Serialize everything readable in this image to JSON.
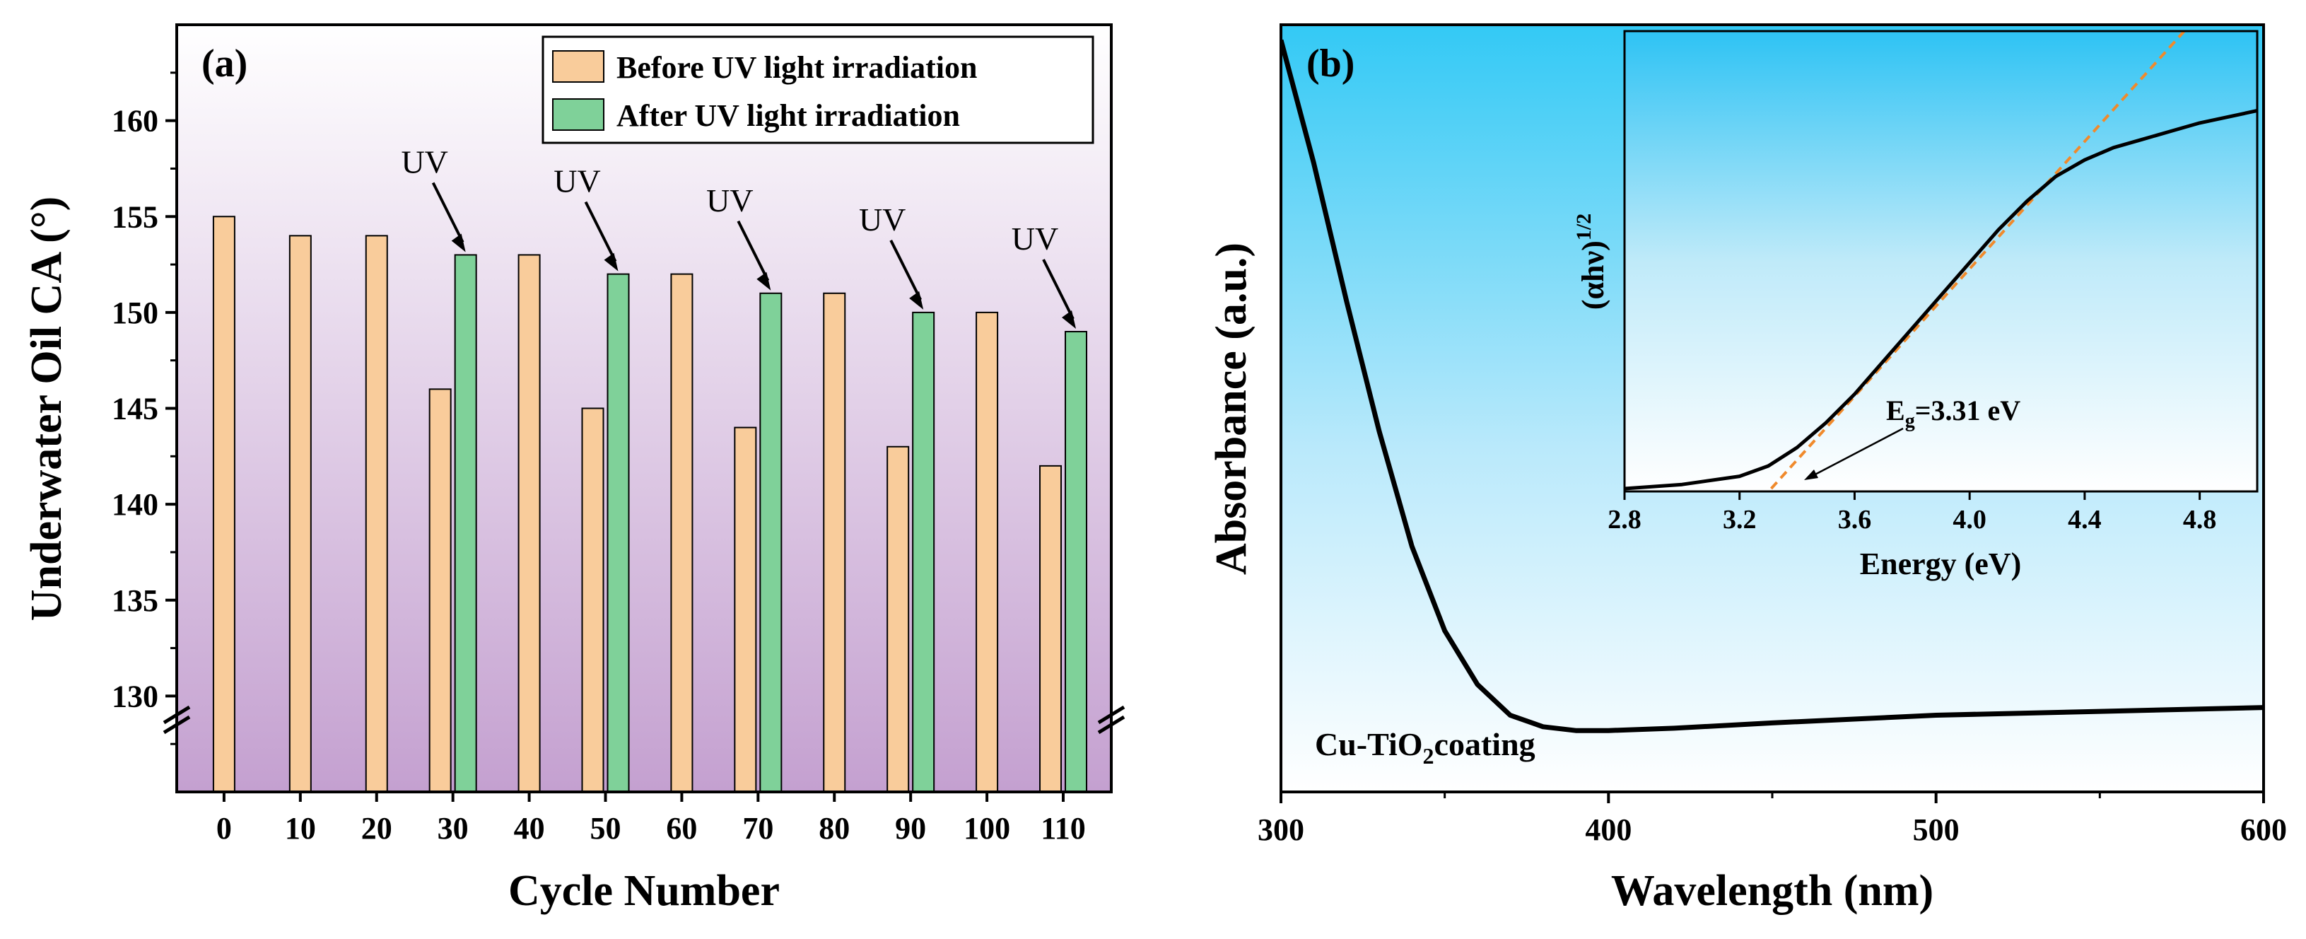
{
  "chart_data": [
    {
      "type": "bar",
      "panel_label": "(a)",
      "xlabel": "Cycle Number",
      "ylabel": "Underwater Oil CA (°)",
      "categories": [
        "0",
        "10",
        "20",
        "30",
        "40",
        "50",
        "60",
        "70",
        "80",
        "90",
        "100",
        "110"
      ],
      "ylim": [
        125,
        165
      ],
      "yticks": [
        "130",
        "135",
        "140",
        "145",
        "150",
        "155",
        "160"
      ],
      "axis_break": true,
      "legend_position": "top-right",
      "series": [
        {
          "name": "Before UV light irradiation",
          "color": "#f9cc9b",
          "values": [
            155,
            154,
            154,
            146,
            153,
            145,
            152,
            144,
            151,
            143,
            150,
            142
          ]
        },
        {
          "name": "After UV light irradiation",
          "color": "#7fd199",
          "values": [
            null,
            null,
            null,
            153,
            null,
            152,
            null,
            151,
            null,
            150,
            null,
            149
          ]
        }
      ],
      "annotations": [
        {
          "text": "UV",
          "category": "30"
        },
        {
          "text": "UV",
          "category": "50"
        },
        {
          "text": "UV",
          "category": "70"
        },
        {
          "text": "UV",
          "category": "90"
        },
        {
          "text": "UV",
          "category": "110"
        }
      ]
    },
    {
      "type": "line",
      "panel_label": "(b)",
      "xlabel": "Wavelength (nm)",
      "ylabel": "Absorbance (a.u.)",
      "xlim": [
        300,
        600
      ],
      "xticks": [
        "300",
        "400",
        "500",
        "600"
      ],
      "ylim": [
        0,
        1
      ],
      "annotation": "Cu-TiO2coating",
      "series": [
        {
          "name": "Absorbance",
          "color": "#000000",
          "x": [
            300,
            310,
            320,
            330,
            340,
            350,
            360,
            370,
            380,
            390,
            400,
            420,
            450,
            500,
            550,
            600
          ],
          "y": [
            0.98,
            0.82,
            0.64,
            0.47,
            0.32,
            0.21,
            0.14,
            0.1,
            0.085,
            0.08,
            0.08,
            0.083,
            0.09,
            0.1,
            0.105,
            0.11
          ]
        }
      ],
      "inset": {
        "type": "line",
        "xlabel": "Energy (eV)",
        "ylabel": "(αhν)1/2",
        "xlim": [
          2.8,
          5.0
        ],
        "xticks": [
          "2.8",
          "3.2",
          "3.6",
          "4.0",
          "4.4",
          "4.8"
        ],
        "ylim": [
          0,
          1
        ],
        "annotation": "Eg=3.31 eV",
        "series": [
          {
            "name": "Tauc curve",
            "color": "#000000",
            "x": [
              2.8,
              3.0,
              3.2,
              3.3,
              3.4,
              3.5,
              3.6,
              3.7,
              3.8,
              3.9,
              4.0,
              4.1,
              4.2,
              4.3,
              4.4,
              4.5,
              4.6,
              4.7,
              4.8,
              5.0
            ],
            "y": [
              0.0,
              0.01,
              0.03,
              0.055,
              0.1,
              0.16,
              0.23,
              0.31,
              0.39,
              0.47,
              0.55,
              0.63,
              0.7,
              0.76,
              0.8,
              0.83,
              0.85,
              0.87,
              0.89,
              0.92
            ]
          },
          {
            "name": "Linear fit",
            "color": "#f08a2c",
            "dashed": true,
            "x": [
              3.31,
              4.6
            ],
            "y": [
              0.0,
              1.0
            ]
          }
        ]
      }
    }
  ]
}
